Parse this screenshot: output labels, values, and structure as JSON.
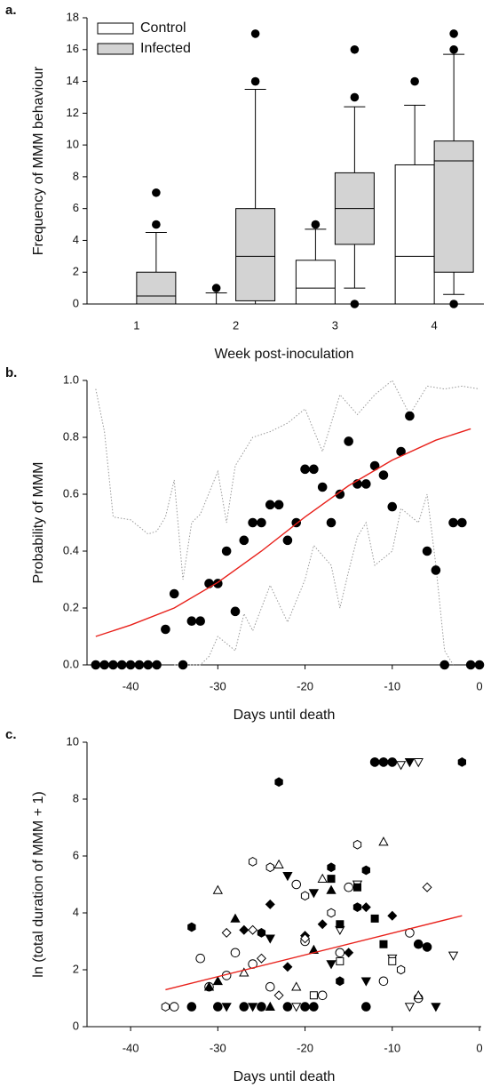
{
  "chart_data": [
    {
      "type": "box",
      "panel_label": "a.",
      "ylabel": "Frequency of MMM behaviour",
      "xlabel": "Week post-inoculation",
      "categories": [
        "1",
        "2",
        "3",
        "4"
      ],
      "ylim": [
        0,
        18
      ],
      "yticks": [
        0,
        2,
        4,
        6,
        8,
        10,
        12,
        14,
        16,
        18
      ],
      "legend": "upper left",
      "series": [
        {
          "name": "Control",
          "color": "#ffffff",
          "boxes": [
            {
              "whislo": 0,
              "q1": 0,
              "med": 0,
              "q3": 0,
              "whishi": 0,
              "fliers": []
            },
            {
              "whislo": 0,
              "q1": 0,
              "med": 0,
              "q3": 0,
              "whishi": 0.7,
              "fliers": [
                1
              ]
            },
            {
              "whislo": 0,
              "q1": 0,
              "med": 1,
              "q3": 2.75,
              "whishi": 4.7,
              "fliers": [
                5
              ]
            },
            {
              "whislo": 0,
              "q1": 0,
              "med": 3,
              "q3": 8.75,
              "whishi": 12.5,
              "fliers": [
                14
              ]
            }
          ]
        },
        {
          "name": "Infected",
          "color": "#d3d3d3",
          "boxes": [
            {
              "whislo": 0,
              "q1": 0,
              "med": 0.5,
              "q3": 2,
              "whishi": 4.5,
              "fliers": [
                5,
                7
              ]
            },
            {
              "whislo": 0,
              "q1": 0.2,
              "med": 3,
              "q3": 6,
              "whishi": 13.5,
              "fliers": [
                14,
                17
              ]
            },
            {
              "whislo": 1,
              "q1": 3.75,
              "med": 6,
              "q3": 8.25,
              "whishi": 12.4,
              "fliers": [
                0,
                13,
                16
              ]
            },
            {
              "whislo": 0.6,
              "q1": 2,
              "med": 9,
              "q3": 10.25,
              "whishi": 15.7,
              "fliers": [
                0,
                16,
                17
              ]
            }
          ]
        }
      ]
    },
    {
      "type": "scatter",
      "panel_label": "b.",
      "ylabel": "Probability of MMM",
      "xlabel": "Days until death",
      "xlim": [
        -45,
        0
      ],
      "xticks": [
        -40,
        -30,
        -20,
        -10,
        0
      ],
      "ylim": [
        0,
        1
      ],
      "yticks": [
        {
          "value": 0,
          "label": "0.0"
        },
        {
          "value": 0.2,
          "label": "0.2"
        },
        {
          "value": 0.4,
          "label": "0.4"
        },
        {
          "value": 0.6,
          "label": "0.6"
        },
        {
          "value": 0.8,
          "label": "0.8"
        },
        {
          "value": 1,
          "label": "1.0"
        }
      ],
      "series": [
        {
          "marker": "circle",
          "filled": true,
          "x": [
            -44,
            -43,
            -42,
            -41,
            -40,
            -39,
            -38,
            -37,
            -36,
            -35,
            -34,
            -33,
            -32,
            -31,
            -30,
            -29,
            -28,
            -27,
            -26,
            -25,
            -24,
            -23,
            -22,
            -21,
            -20,
            -19,
            -18,
            -17,
            -16,
            -15,
            -14,
            -13,
            -12,
            -11,
            -10,
            -9,
            -8,
            -6,
            -5,
            -4,
            -3,
            -2,
            -1,
            0
          ],
          "y": [
            0,
            0,
            0,
            0,
            0,
            0,
            0,
            0,
            0.125,
            0.25,
            0,
            0.154,
            0.154,
            0.286,
            0.286,
            0.4,
            0.188,
            0.438,
            0.5,
            0.5,
            0.563,
            0.563,
            0.438,
            0.5,
            0.688,
            0.688,
            0.625,
            0.5,
            0.6,
            0.786,
            0.636,
            0.636,
            0.7,
            0.667,
            0.556,
            0.75,
            0.875,
            0.4,
            0.333,
            0,
            0.5,
            0.5,
            0,
            0
          ]
        }
      ],
      "fit": {
        "color": "#e8201a",
        "x": [
          -44,
          -40,
          -35,
          -30,
          -25,
          -20,
          -15,
          -10,
          -5,
          -1
        ],
        "y": [
          0.1,
          0.14,
          0.2,
          0.29,
          0.4,
          0.52,
          0.63,
          0.72,
          0.79,
          0.83
        ]
      },
      "ci_upper": {
        "color": "#999999",
        "x": [
          -44,
          -43,
          -42,
          -40,
          -38,
          -37,
          -36,
          -35,
          -34,
          -33,
          -32,
          -30,
          -29,
          -28,
          -26,
          -24,
          -22,
          -20,
          -18,
          -16,
          -14,
          -12,
          -10,
          -8,
          -6,
          -4,
          -2,
          0
        ],
        "y": [
          0.97,
          0.82,
          0.52,
          0.51,
          0.46,
          0.47,
          0.52,
          0.65,
          0.3,
          0.5,
          0.53,
          0.68,
          0.5,
          0.7,
          0.8,
          0.82,
          0.85,
          0.9,
          0.75,
          0.95,
          0.88,
          0.95,
          1,
          0.88,
          0.98,
          0.97,
          0.98,
          0.97
        ]
      },
      "ci_lower": {
        "color": "#999999",
        "x": [
          -35,
          -34,
          -32,
          -31,
          -30,
          -28,
          -27,
          -26,
          -24,
          -22,
          -20,
          -19,
          -17,
          -16,
          -15,
          -14,
          -13,
          -12,
          -10,
          -9,
          -7,
          -6,
          -5,
          -4,
          -3
        ],
        "y": [
          0,
          0,
          0,
          0.03,
          0.1,
          0.05,
          0.18,
          0.12,
          0.28,
          0.15,
          0.3,
          0.42,
          0.35,
          0.2,
          0.33,
          0.45,
          0.5,
          0.35,
          0.4,
          0.55,
          0.5,
          0.6,
          0.35,
          0.05,
          0
        ]
      }
    },
    {
      "type": "scatter",
      "panel_label": "c.",
      "ylabel": "ln (total duration of MMM + 1)",
      "xlabel": "Days until death",
      "xlim": [
        -45,
        0
      ],
      "xticks": [
        -40,
        -30,
        -20,
        -10,
        0
      ],
      "ylim": [
        0,
        10
      ],
      "yticks": [
        0,
        2,
        4,
        6,
        8,
        10
      ],
      "series": [
        {
          "marker": "circle",
          "filled": true,
          "x": [
            -33,
            -30,
            -27,
            -25,
            -22,
            -20,
            -19,
            -13,
            -12,
            -11,
            -10,
            -7,
            -6
          ],
          "y": [
            0.7,
            0.7,
            0.7,
            0.7,
            0.7,
            0.7,
            0.7,
            0.7,
            9.3,
            9.3,
            9.3,
            2.9,
            2.8
          ]
        },
        {
          "marker": "circle",
          "filled": false,
          "x": [
            -35,
            -32,
            -31,
            -29,
            -28,
            -26,
            -24,
            -21,
            -20,
            -18,
            -16,
            -15,
            -11,
            -8,
            -7
          ],
          "y": [
            0.7,
            2.4,
            1.4,
            1.8,
            2.6,
            2.2,
            1.4,
            5,
            3,
            1.1,
            2.6,
            4.9,
            1.6,
            3.3,
            1
          ]
        },
        {
          "marker": "hexagon",
          "filled": true,
          "x": [
            -33,
            -25,
            -23,
            -17,
            -16,
            -14,
            -13,
            -12,
            -11,
            -2
          ],
          "y": [
            3.5,
            3.3,
            8.6,
            5.6,
            1.6,
            4.2,
            5.5,
            9.3,
            9.3,
            9.3
          ]
        },
        {
          "marker": "hexagon",
          "filled": false,
          "x": [
            -36,
            -26,
            -24,
            -20,
            -17,
            -14,
            -9
          ],
          "y": [
            0.7,
            5.8,
            5.6,
            4.6,
            4,
            6.4,
            2
          ]
        },
        {
          "marker": "triangle-up",
          "filled": true,
          "x": [
            -31,
            -30,
            -28,
            -24,
            -19,
            -17
          ],
          "y": [
            1.4,
            1.6,
            3.8,
            0.7,
            2.7,
            4.8
          ]
        },
        {
          "marker": "triangle-up",
          "filled": false,
          "x": [
            -30,
            -27,
            -23,
            -21,
            -18,
            -11,
            -7
          ],
          "y": [
            4.8,
            1.9,
            5.7,
            1.4,
            5.2,
            6.5,
            1.1
          ]
        },
        {
          "marker": "triangle-down",
          "filled": true,
          "x": [
            -29,
            -26,
            -24,
            -22,
            -19,
            -17,
            -13,
            -8,
            -5
          ],
          "y": [
            0.7,
            0.7,
            3.1,
            5.3,
            4.7,
            2.2,
            1.6,
            9.3,
            0.7
          ]
        },
        {
          "marker": "triangle-down",
          "filled": false,
          "x": [
            -21,
            -16,
            -14,
            -10,
            -9,
            -8,
            -7,
            -3
          ],
          "y": [
            0.7,
            3.4,
            5,
            2.4,
            9.2,
            0.7,
            9.3,
            2.5
          ]
        },
        {
          "marker": "square",
          "filled": true,
          "x": [
            -17,
            -16,
            -14,
            -12,
            -11
          ],
          "y": [
            5.2,
            3.6,
            4.9,
            3.8,
            2.9
          ]
        },
        {
          "marker": "square",
          "filled": false,
          "x": [
            -19,
            -16,
            -10
          ],
          "y": [
            1.1,
            2.3,
            2.3
          ]
        },
        {
          "marker": "diamond",
          "filled": true,
          "x": [
            -27,
            -24,
            -22,
            -20,
            -18,
            -15,
            -13,
            -10
          ],
          "y": [
            3.4,
            4.3,
            2.1,
            3.2,
            3.6,
            2.6,
            4.2,
            3.9
          ]
        },
        {
          "marker": "diamond",
          "filled": false,
          "x": [
            -29,
            -26,
            -25,
            -23,
            -20,
            -6
          ],
          "y": [
            3.3,
            3.4,
            2.4,
            1.1,
            3.1,
            4.9
          ]
        }
      ],
      "fit": {
        "color": "#e8201a",
        "x": [
          -36,
          -2
        ],
        "y": [
          1.3,
          3.9
        ]
      }
    }
  ]
}
